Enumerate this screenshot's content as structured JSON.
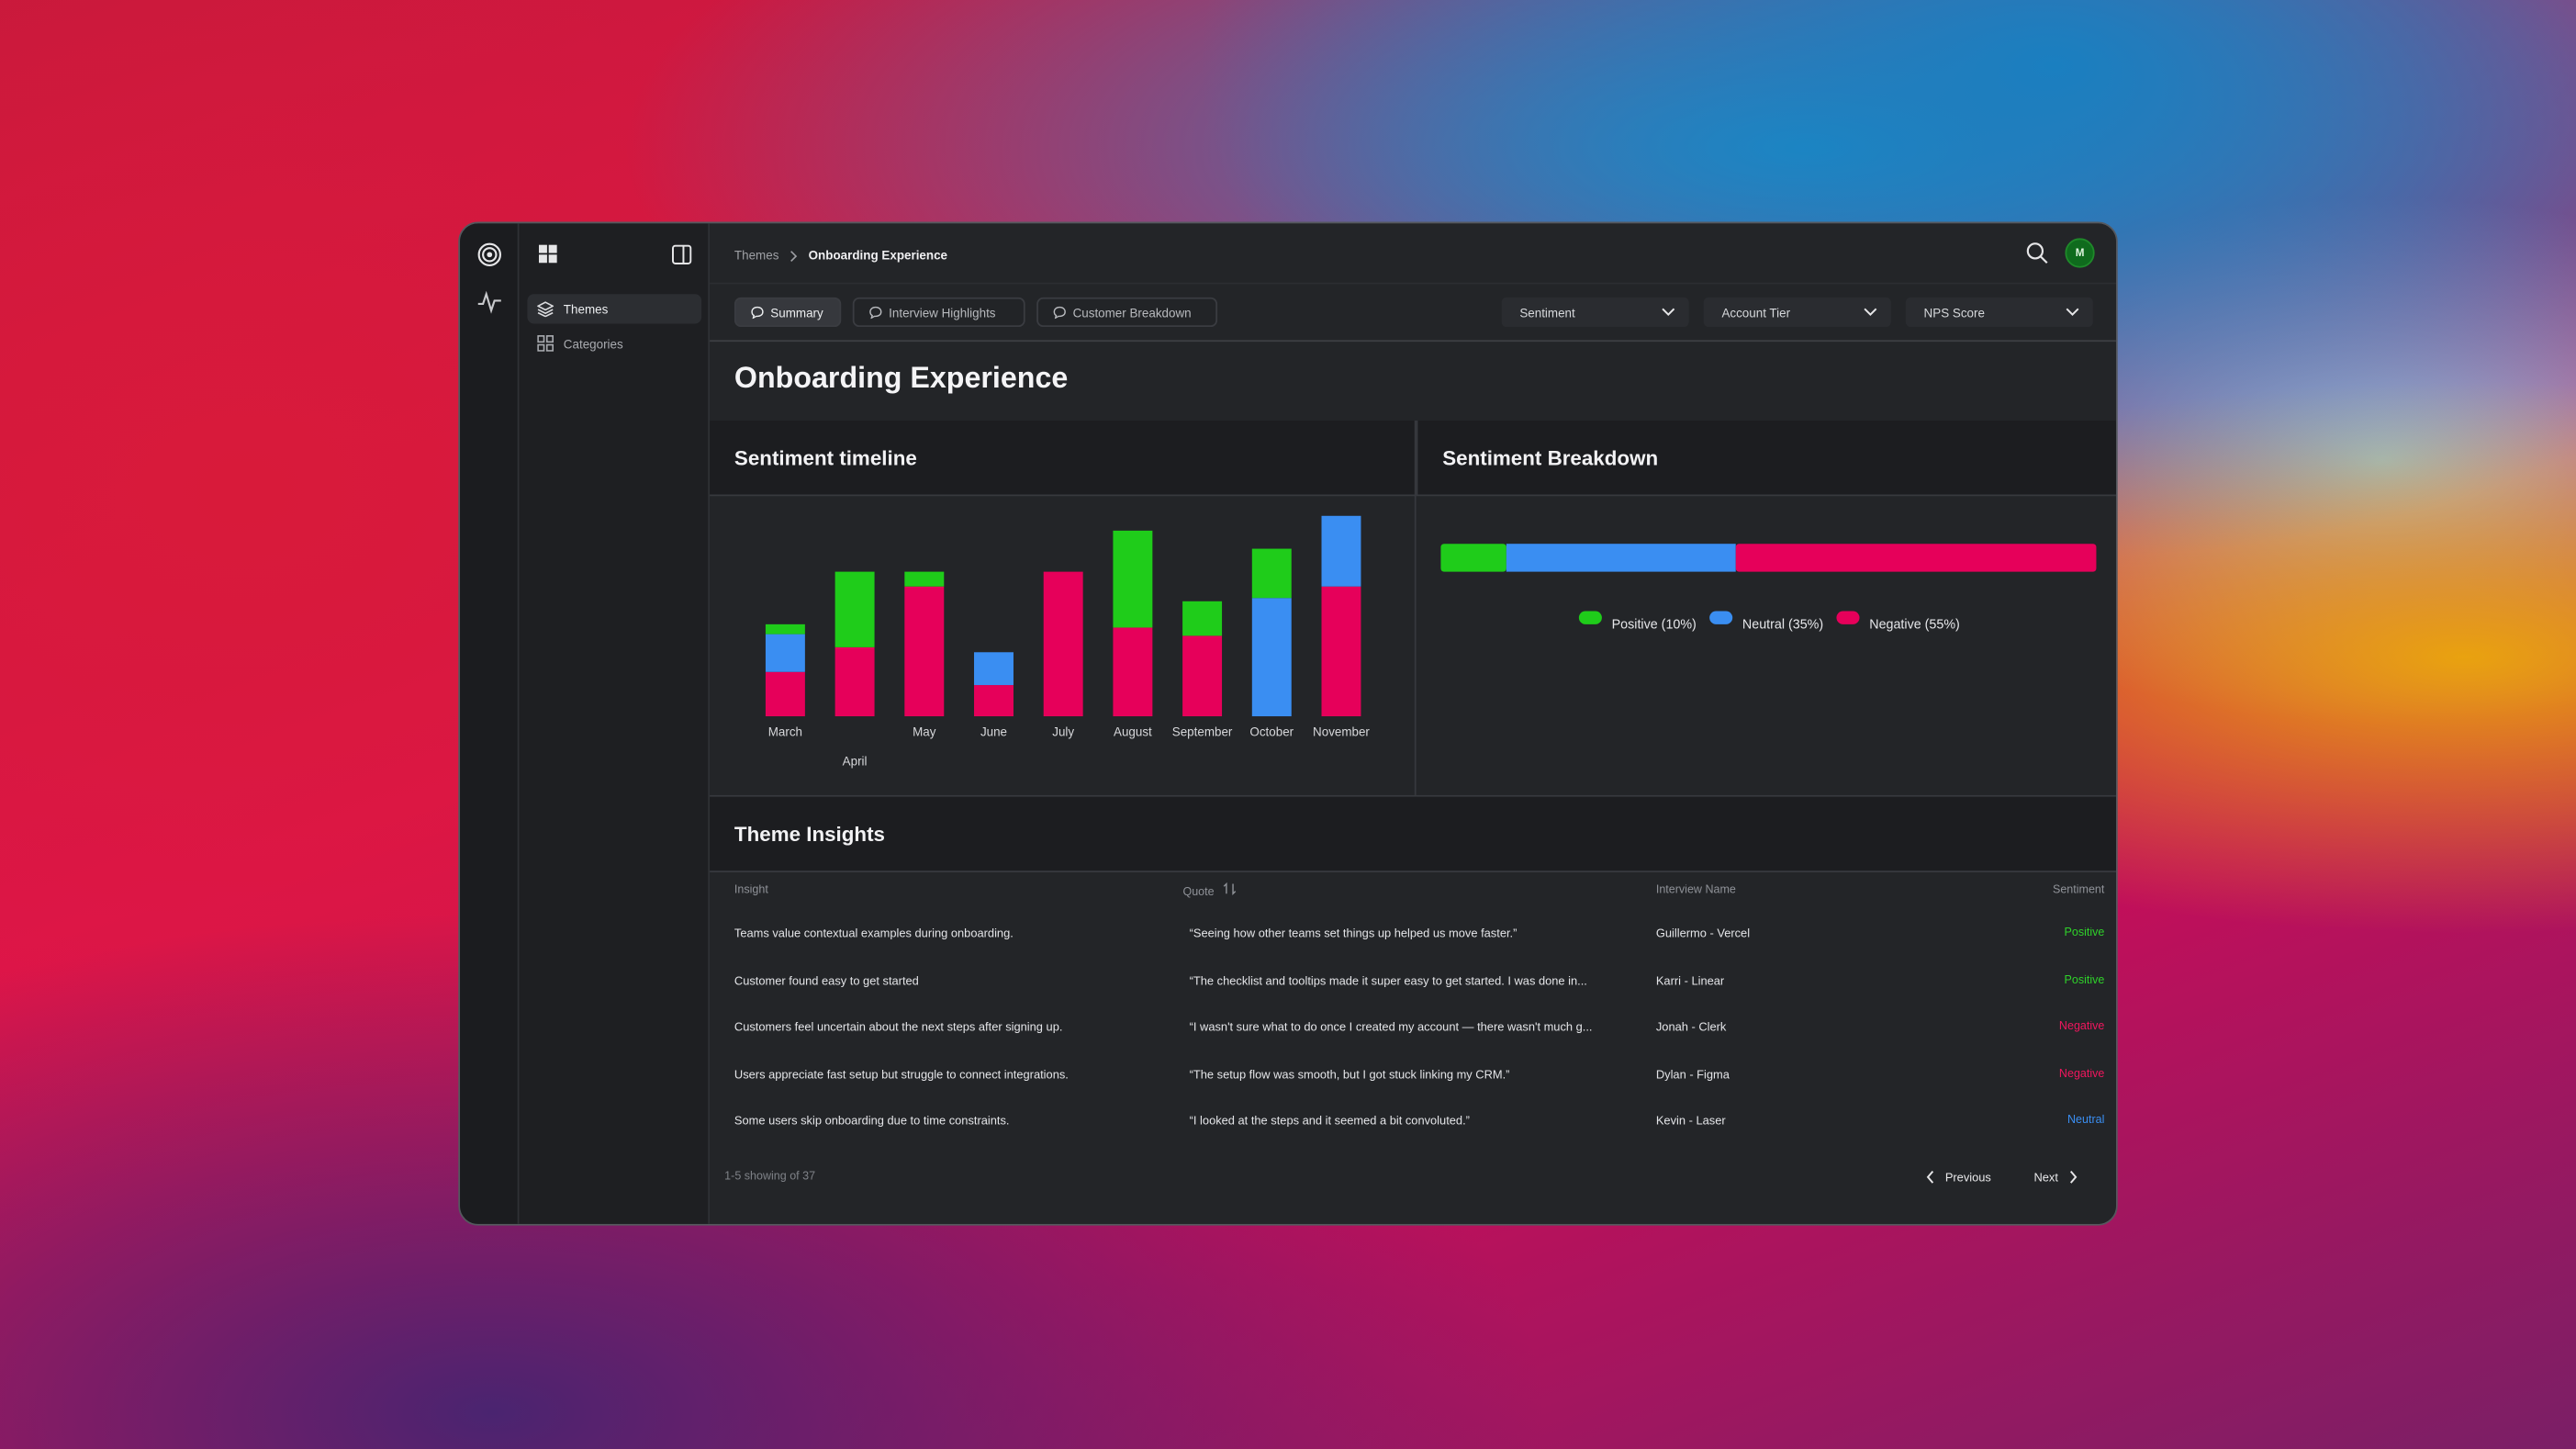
{
  "sidebar": {
    "nav": [
      "Themes",
      "Categories"
    ]
  },
  "header": {
    "breadcrumb": [
      "Themes",
      "Onboarding Experience"
    ],
    "avatar": "M"
  },
  "tabs": [
    "Summary",
    "Interview Highlights",
    "Customer Breakdown"
  ],
  "filters": [
    "Sentiment",
    "Account Tier",
    "NPS Score"
  ],
  "page_title": "Onboarding Experience",
  "chart_data": [
    {
      "type": "bar",
      "stacked": true,
      "title": "Sentiment timeline",
      "categories": [
        "March",
        "April",
        "May",
        "June",
        "July",
        "August",
        "September",
        "October",
        "November"
      ],
      "series": [
        {
          "color": "#e6005a",
          "values": [
            27,
            42,
            79,
            19,
            88,
            54,
            49,
            0,
            79
          ]
        },
        {
          "color": "#3a8ef2",
          "values": [
            23,
            0,
            0,
            20,
            0,
            0,
            0,
            72,
            43
          ]
        },
        {
          "color": "#1fcc1a",
          "values": [
            6,
            46,
            9,
            0,
            0,
            59,
            21,
            30,
            0
          ]
        }
      ]
    },
    {
      "type": "bar",
      "orientation": "horizontal",
      "stacked": true,
      "title": "Sentiment Breakdown",
      "series": [
        {
          "name": "Positive (10%)",
          "color": "#1fcc1a",
          "values": [
            10
          ]
        },
        {
          "name": "Neutral (35%)",
          "color": "#3a8ef2",
          "values": [
            35
          ]
        },
        {
          "name": "Negative (55%)",
          "color": "#e6005a",
          "values": [
            55
          ]
        }
      ],
      "legend": "bottom"
    }
  ],
  "table": {
    "title": "Theme Insights",
    "columns": [
      "Insight",
      "Quote",
      "Interview Name",
      "Sentiment"
    ],
    "rows": [
      [
        "Teams value contextual examples during onboarding.",
        "“Seeing how other teams set things up helped us move faster.”",
        "Guillermo - Vercel",
        "Positive"
      ],
      [
        "Customer found easy to get started",
        "“The checklist and tooltips made it super easy to get started. I was done in...",
        "Karri - Linear",
        "Positive"
      ],
      [
        "Customers feel uncertain about the next steps after signing up.",
        "“I wasn't sure what to do once I created my account — there wasn't much g...",
        "Jonah - Clerk",
        "Negative"
      ],
      [
        "Users appreciate fast setup but struggle to connect integrations.",
        "“The setup flow was smooth, but I got stuck linking my CRM.”",
        "Dylan - Figma",
        "Negative"
      ],
      [
        "Some users skip onboarding due to time constraints.",
        "“I looked at the steps and it seemed a bit convoluted.”",
        "Kevin - Laser",
        "Neutral"
      ]
    ],
    "sentiment_colors": {
      "Positive": "#2fd12a",
      "Negative": "#f0165e",
      "Neutral": "#3a8ef2"
    },
    "footer": "1-5 showing of 37",
    "pagination": [
      "Previous",
      "Next"
    ]
  }
}
